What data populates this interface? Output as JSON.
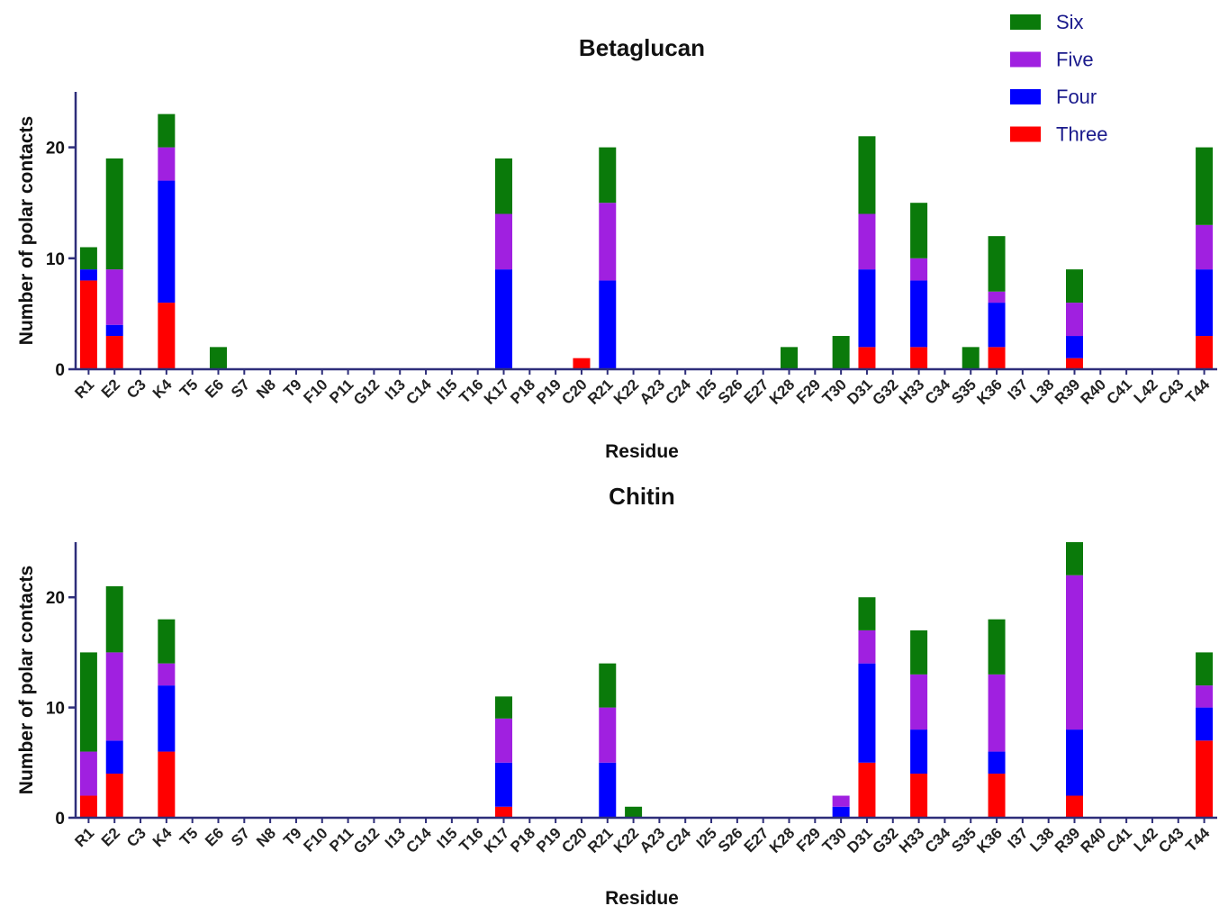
{
  "colors": {
    "Six": "#0a7a0a",
    "Five": "#a020e0",
    "Four": "#0000ff",
    "Three": "#ff0000",
    "axis": "#2e2e7a"
  },
  "legend": {
    "items": [
      "Six",
      "Five",
      "Four",
      "Three"
    ]
  },
  "chart_data": [
    {
      "type": "bar",
      "stacked": true,
      "title": "Betaglucan",
      "xlabel": "Residue",
      "ylabel": "Number of polar contacts",
      "ylim": [
        0,
        25
      ],
      "yticks": [
        0,
        10,
        20
      ],
      "categories": [
        "R1",
        "E2",
        "C3",
        "K4",
        "T5",
        "E6",
        "S7",
        "N8",
        "T9",
        "F10",
        "P11",
        "G12",
        "I13",
        "C14",
        "I15",
        "T16",
        "K17",
        "P18",
        "P19",
        "C20",
        "R21",
        "K22",
        "A23",
        "C24",
        "I25",
        "S26",
        "E27",
        "K28",
        "F29",
        "T30",
        "D31",
        "G32",
        "H33",
        "C34",
        "S35",
        "K36",
        "I37",
        "L38",
        "R39",
        "R40",
        "C41",
        "L42",
        "C43",
        "T44"
      ],
      "series": [
        {
          "name": "Three",
          "values": [
            8,
            3,
            0,
            6,
            0,
            0,
            0,
            0,
            0,
            0,
            0,
            0,
            0,
            0,
            0,
            0,
            0,
            0,
            0,
            1,
            0,
            0,
            0,
            0,
            0,
            0,
            0,
            0,
            0,
            0,
            2,
            0,
            2,
            0,
            0,
            2,
            0,
            0,
            1,
            0,
            0,
            0,
            0,
            3
          ]
        },
        {
          "name": "Four",
          "values": [
            1,
            1,
            0,
            11,
            0,
            0,
            0,
            0,
            0,
            0,
            0,
            0,
            0,
            0,
            0,
            0,
            9,
            0,
            0,
            0,
            8,
            0,
            0,
            0,
            0,
            0,
            0,
            0,
            0,
            0,
            7,
            0,
            6,
            0,
            0,
            4,
            0,
            0,
            2,
            0,
            0,
            0,
            0,
            6
          ]
        },
        {
          "name": "Five",
          "values": [
            0,
            5,
            0,
            3,
            0,
            0,
            0,
            0,
            0,
            0,
            0,
            0,
            0,
            0,
            0,
            0,
            5,
            0,
            0,
            0,
            7,
            0,
            0,
            0,
            0,
            0,
            0,
            0,
            0,
            0,
            5,
            0,
            2,
            0,
            0,
            1,
            0,
            0,
            3,
            0,
            0,
            0,
            0,
            4
          ]
        },
        {
          "name": "Six",
          "values": [
            2,
            10,
            0,
            3,
            0,
            2,
            0,
            0,
            0,
            0,
            0,
            0,
            0,
            0,
            0,
            0,
            5,
            0,
            0,
            0,
            5,
            0,
            0,
            0,
            0,
            0,
            0,
            2,
            0,
            3,
            7,
            0,
            5,
            0,
            2,
            5,
            0,
            0,
            3,
            0,
            0,
            0,
            0,
            7
          ]
        }
      ]
    },
    {
      "type": "bar",
      "stacked": true,
      "title": "Chitin",
      "xlabel": "Residue",
      "ylabel": "Number of polar contacts",
      "ylim": [
        0,
        25
      ],
      "yticks": [
        0,
        10,
        20
      ],
      "categories": [
        "R1",
        "E2",
        "C3",
        "K4",
        "T5",
        "E6",
        "S7",
        "N8",
        "T9",
        "F10",
        "P11",
        "G12",
        "I13",
        "C14",
        "I15",
        "T16",
        "K17",
        "P18",
        "P19",
        "C20",
        "R21",
        "K22",
        "A23",
        "C24",
        "I25",
        "S26",
        "E27",
        "K28",
        "F29",
        "T30",
        "D31",
        "G32",
        "H33",
        "C34",
        "S35",
        "K36",
        "I37",
        "L38",
        "R39",
        "R40",
        "C41",
        "L42",
        "C43",
        "T44"
      ],
      "series": [
        {
          "name": "Three",
          "values": [
            2,
            4,
            0,
            6,
            0,
            0,
            0,
            0,
            0,
            0,
            0,
            0,
            0,
            0,
            0,
            0,
            1,
            0,
            0,
            0,
            0,
            0,
            0,
            0,
            0,
            0,
            0,
            0,
            0,
            0,
            5,
            0,
            4,
            0,
            0,
            4,
            0,
            0,
            2,
            0,
            0,
            0,
            0,
            7
          ]
        },
        {
          "name": "Four",
          "values": [
            0,
            3,
            0,
            6,
            0,
            0,
            0,
            0,
            0,
            0,
            0,
            0,
            0,
            0,
            0,
            0,
            4,
            0,
            0,
            0,
            5,
            0,
            0,
            0,
            0,
            0,
            0,
            0,
            0,
            1,
            9,
            0,
            4,
            0,
            0,
            2,
            0,
            0,
            6,
            0,
            0,
            0,
            0,
            3
          ]
        },
        {
          "name": "Five",
          "values": [
            4,
            8,
            0,
            2,
            0,
            0,
            0,
            0,
            0,
            0,
            0,
            0,
            0,
            0,
            0,
            0,
            4,
            0,
            0,
            0,
            5,
            0,
            0,
            0,
            0,
            0,
            0,
            0,
            0,
            1,
            3,
            0,
            5,
            0,
            0,
            7,
            0,
            0,
            14,
            0,
            0,
            0,
            0,
            2
          ]
        },
        {
          "name": "Six",
          "values": [
            9,
            6,
            0,
            4,
            0,
            0,
            0,
            0,
            0,
            0,
            0,
            0,
            0,
            0,
            0,
            0,
            2,
            0,
            0,
            0,
            4,
            1,
            0,
            0,
            0,
            0,
            0,
            0,
            0,
            0,
            3,
            0,
            4,
            0,
            0,
            5,
            0,
            0,
            3,
            0,
            0,
            0,
            0,
            3
          ]
        }
      ]
    }
  ]
}
